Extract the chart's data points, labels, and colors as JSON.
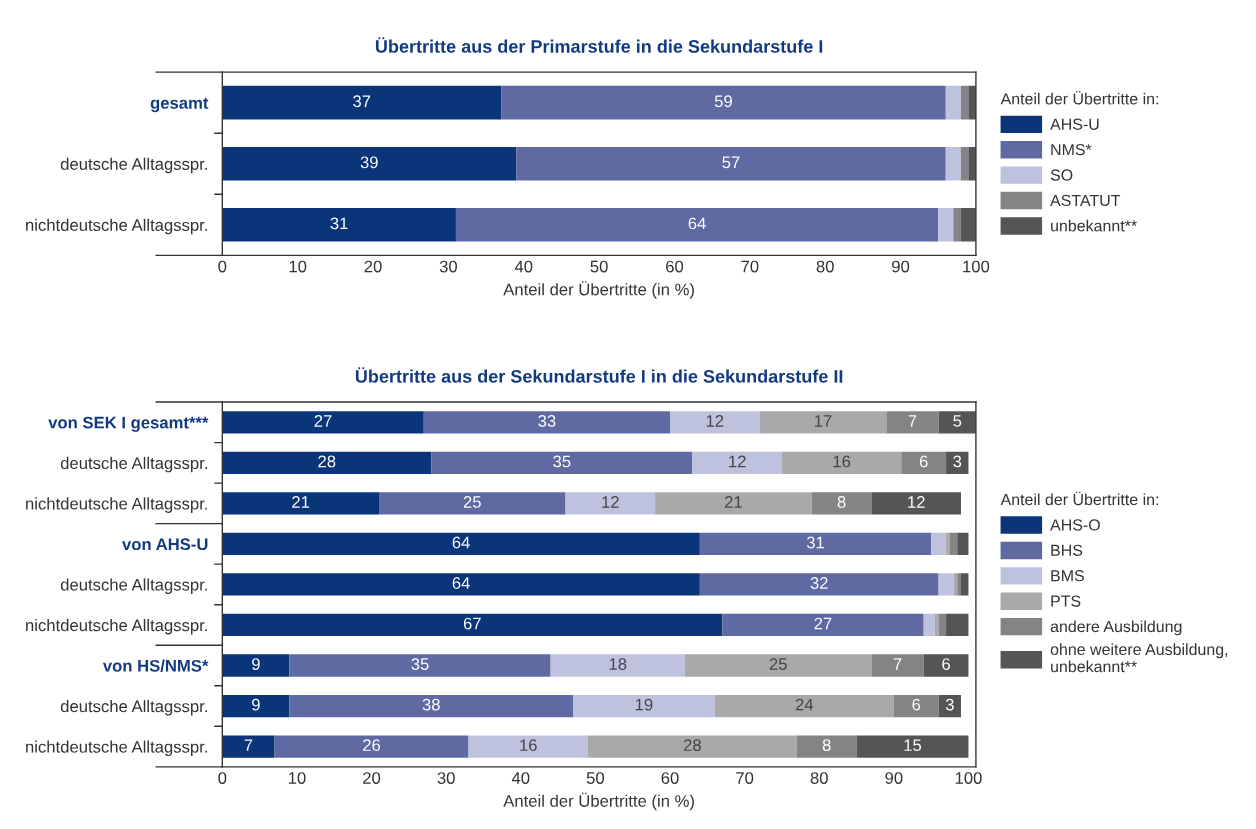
{
  "chart_data": [
    {
      "type": "bar",
      "orientation": "horizontal",
      "stacked": true,
      "title": "Übertritte aus der Primarstufe in die Sekundarstufe I",
      "xlabel": "Anteil der Übertritte (in %)",
      "legend_title": "Anteil der Übertritte in:",
      "legend": "right",
      "grid": false,
      "categories": [
        "gesamt",
        "deutsche Alltagsspr.",
        "nichtdeutsche Alltagsspr."
      ],
      "xlim": [
        0,
        100
      ],
      "xticks": [
        0,
        10,
        20,
        30,
        40,
        50,
        60,
        70,
        80,
        90,
        100
      ],
      "series": [
        {
          "name": "AHS-U",
          "color": "#0a3579",
          "values": [
            37,
            39,
            31
          ],
          "value_labels": [
            "37",
            "39",
            "31"
          ]
        },
        {
          "name": "NMS*",
          "color": "#5f6aa3",
          "values": [
            59,
            57,
            64
          ],
          "value_labels": [
            "59",
            "57",
            "64"
          ]
        },
        {
          "name": "SO",
          "color": "#bfc2df",
          "values": [
            2,
            2,
            2
          ]
        },
        {
          "name": "ASTATUT",
          "color": "#848486",
          "values": [
            1,
            1,
            1
          ]
        },
        {
          "name": "unbekannt**",
          "color": "#555558",
          "values": [
            1,
            1,
            2
          ]
        }
      ]
    },
    {
      "type": "bar",
      "orientation": "horizontal",
      "stacked": true,
      "title": "Übertritte aus der Sekundarstufe I in die Sekundarstufe II",
      "xlabel": "Anteil der Übertritte (in %)",
      "legend_title": "Anteil der Übertritte in:",
      "legend": "right",
      "grid": false,
      "categories": [
        "von SEK I gesamt***",
        "deutsche Alltagsspr.",
        "nichtdeutsche Alltagsspr.",
        "von AHS-U",
        "deutsche Alltagsspr.",
        "nichtdeutsche Alltagsspr.",
        "von HS/NMS*",
        "deutsche Alltagsspr.",
        "nichtdeutsche Alltagsspr."
      ],
      "xlim": [
        0,
        101
      ],
      "xticks": [
        0,
        10,
        20,
        30,
        40,
        50,
        60,
        70,
        80,
        90,
        100
      ],
      "series": [
        {
          "name": "AHS-O",
          "color": "#0a3579",
          "values": [
            27,
            28,
            21,
            64,
            64,
            67,
            9,
            9,
            7
          ],
          "value_labels": [
            "27",
            "28",
            "21",
            "64",
            "64",
            "67",
            "9",
            "9",
            "7"
          ]
        },
        {
          "name": "BHS",
          "color": "#5f6aa3",
          "values": [
            33,
            35,
            25,
            31,
            32,
            27,
            35,
            38,
            26
          ],
          "value_labels": [
            "33",
            "35",
            "25",
            "31",
            "32",
            "27",
            "35",
            "38",
            "26"
          ]
        },
        {
          "name": "BMS",
          "color": "#bfc2df",
          "values": [
            12,
            12,
            12,
            2,
            2,
            1.5,
            18,
            19,
            16
          ],
          "value_labels": [
            "12",
            "12",
            "12",
            null,
            null,
            null,
            "18",
            "19",
            "16"
          ]
        },
        {
          "name": "PTS",
          "color": "#a9a9ab",
          "values": [
            17,
            16,
            21,
            0.5,
            0.5,
            0.5,
            25,
            24,
            28
          ],
          "value_labels": [
            "17",
            "16",
            "21",
            null,
            null,
            null,
            "25",
            "24",
            "28"
          ]
        },
        {
          "name": "andere Ausbildung",
          "color": "#848486",
          "values": [
            7,
            6,
            8,
            1,
            0.5,
            1,
            7,
            6,
            8
          ],
          "value_labels": [
            "7",
            "6",
            "8",
            null,
            null,
            null,
            "7",
            "6",
            "8"
          ]
        },
        {
          "name": "ohne weitere Ausbildung,\nunbekannt**",
          "color": "#555558",
          "values": [
            5,
            3,
            12,
            1.5,
            1,
            3,
            6,
            3,
            15
          ],
          "value_labels": [
            "5",
            "3",
            "12",
            null,
            null,
            null,
            "6",
            "3",
            "15"
          ]
        }
      ]
    }
  ]
}
